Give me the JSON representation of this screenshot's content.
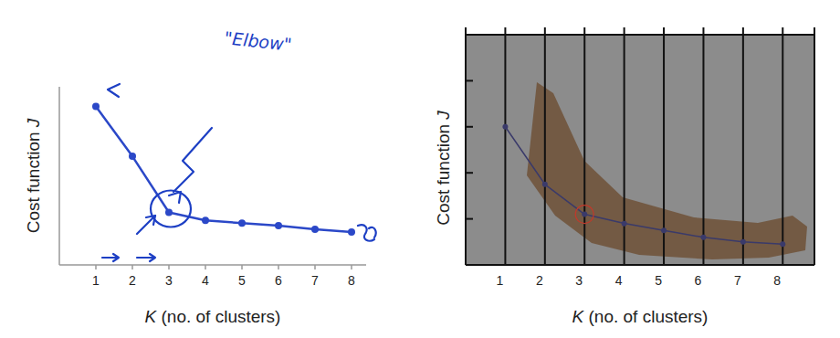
{
  "chart_data": [
    {
      "type": "line",
      "x_label": "K (no. of clusters)",
      "y_label": "Cost function J",
      "annotations": [
        "\"Elbow\""
      ],
      "x": [
        1,
        2,
        3,
        4,
        5,
        6,
        7,
        8
      ],
      "values": [
        8.9,
        6.1,
        2.95,
        2.5,
        2.35,
        2.2,
        2.0,
        1.85
      ],
      "xlim": [
        0,
        8.4
      ],
      "ylim": [
        0,
        10
      ],
      "xticks": [
        1,
        2,
        3,
        4,
        5,
        6,
        7,
        8
      ],
      "tick_labels": "x",
      "color": "#2b48c8",
      "marker": "circle"
    },
    {
      "type": "line",
      "x_label": "K (no. of clusters)",
      "y_label": "Cost function J",
      "x": [
        1,
        2,
        3,
        4,
        5,
        6,
        7,
        8
      ],
      "values": [
        6.0,
        3.5,
        2.2,
        1.8,
        1.5,
        1.2,
        1.0,
        0.9
      ],
      "xlim": [
        0,
        8.8
      ],
      "ylim": [
        0,
        10
      ],
      "xticks": [
        1,
        2,
        3,
        4,
        5,
        6,
        7,
        8
      ],
      "yticks": [
        2,
        4,
        6,
        8
      ],
      "grid": "x",
      "tick_labels": "x",
      "color": "#3a3a6a",
      "marker": "circle"
    }
  ]
}
